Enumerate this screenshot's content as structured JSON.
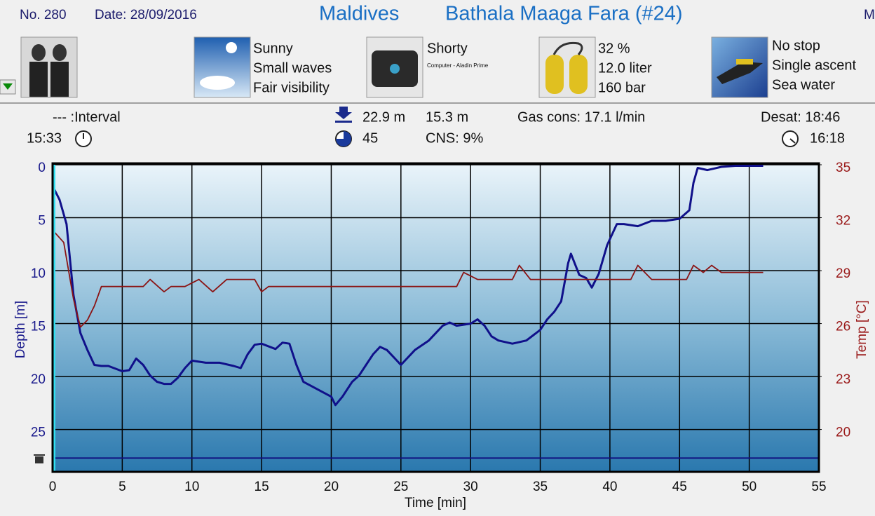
{
  "header": {
    "number": "No. 280",
    "date": "Date: 28/09/2016",
    "location": "Maldives",
    "site": "Bathala Maaga Fara (#24)",
    "cut_text": "M"
  },
  "conditions": {
    "weather": [
      "Sunny",
      "Small waves",
      "Fair visibility"
    ],
    "suit": "Shorty",
    "computer": "Computer - Aladin Prime",
    "gas": [
      "32 %",
      "12.0 liter",
      "160 bar"
    ],
    "dive": [
      "No stop",
      "Single ascent",
      "Sea water"
    ]
  },
  "stats": {
    "interval": "--- :Interval",
    "entry_time": "15:33",
    "max_depth": "22.9 m",
    "avg_depth": "15.3 m",
    "gas_cons": "Gas cons: 17.1 l/min",
    "desat": "Desat: 18:46",
    "duration": "45",
    "cns": "CNS:  9%",
    "exit_time": "16:18"
  },
  "chart_data": {
    "type": "line",
    "x_label": "Time [min]",
    "y_label": "Depth [m]",
    "y2_label": "Temp [°C]",
    "xlim": [
      0,
      55
    ],
    "xticks": [
      0,
      5,
      10,
      15,
      20,
      25,
      30,
      35,
      40,
      45,
      50,
      55
    ],
    "ylim": [
      0,
      29
    ],
    "y_inverted": true,
    "yticks": [
      0,
      5,
      10,
      15,
      20,
      25
    ],
    "y2lim": [
      17.6,
      35
    ],
    "y2ticks": [
      35,
      32,
      29,
      26,
      23,
      20
    ],
    "grid": true,
    "reference_depth": 27.7,
    "series": [
      {
        "color": "#10108a",
        "x": [
          0,
          0.5,
          1,
          1.5,
          2,
          2.5,
          3,
          3.5,
          4,
          5,
          5.5,
          6,
          6.5,
          7,
          7.5,
          8,
          8.5,
          9,
          9.5,
          10,
          11,
          12,
          13,
          13.5,
          14,
          14.5,
          15,
          16,
          16.5,
          17,
          17.5,
          18,
          19,
          20,
          20.3,
          20.8,
          21.5,
          22,
          22.5,
          23,
          23.5,
          24,
          24.5,
          25,
          25.5,
          26,
          27,
          28,
          28.5,
          29,
          30,
          30.5,
          31,
          31.5,
          32,
          33,
          34,
          35,
          35.5,
          36,
          36.5,
          37,
          37.2,
          37.8,
          38.3,
          38.7,
          39.2,
          39.8,
          40.5,
          41,
          42,
          43,
          44,
          45,
          45.7,
          46,
          46.3,
          47,
          48,
          49,
          50,
          51
        ],
        "values": [
          2.0,
          3.3,
          5.6,
          12.3,
          15.9,
          17.5,
          18.9,
          19.0,
          19.0,
          19.5,
          19.4,
          18.3,
          18.9,
          19.9,
          20.5,
          20.7,
          20.7,
          20.1,
          19.2,
          18.5,
          18.7,
          18.7,
          19.0,
          19.2,
          17.9,
          17.0,
          16.9,
          17.4,
          16.8,
          16.9,
          18.9,
          20.5,
          21.2,
          21.9,
          22.7,
          21.9,
          20.5,
          19.9,
          18.9,
          17.9,
          17.2,
          17.5,
          18.2,
          18.9,
          18.2,
          17.5,
          16.6,
          15.2,
          14.9,
          15.2,
          15.0,
          14.6,
          15.2,
          16.2,
          16.6,
          16.9,
          16.6,
          15.6,
          14.6,
          13.9,
          12.9,
          9.3,
          8.4,
          10.4,
          10.7,
          11.6,
          10.3,
          7.6,
          5.6,
          5.6,
          5.8,
          5.3,
          5.3,
          5.1,
          4.3,
          1.7,
          0.3,
          0.5,
          0.2,
          0.1,
          0.1,
          0.1
        ]
      },
      {
        "color": "#8b1414",
        "axis": "y2",
        "x": [
          0,
          0.8,
          1.5,
          2,
          2.5,
          3,
          3.5,
          5,
          6.5,
          7,
          8,
          8.5,
          9.5,
          10.5,
          11.5,
          12.5,
          14.5,
          15,
          15.5,
          29,
          29.5,
          30.5,
          33,
          33.5,
          34.3,
          37,
          41.5,
          42,
          43,
          45.5,
          46,
          46.7,
          47.3,
          48,
          51
        ],
        "values": [
          31.3,
          30.6,
          27.4,
          25.8,
          26.2,
          27.0,
          28.1,
          28.1,
          28.1,
          28.5,
          27.8,
          28.1,
          28.1,
          28.5,
          27.8,
          28.5,
          28.5,
          27.8,
          28.1,
          28.1,
          28.9,
          28.5,
          28.5,
          29.3,
          28.5,
          28.5,
          28.5,
          29.3,
          28.5,
          28.5,
          29.3,
          28.9,
          29.3,
          28.9,
          28.9
        ]
      }
    ]
  }
}
